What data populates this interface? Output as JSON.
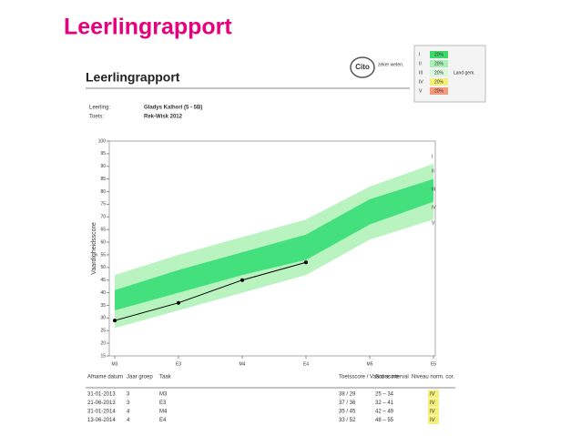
{
  "slide_title": "Leerlingrapport",
  "report": {
    "title": "Leerlingrapport",
    "logo": "Cito",
    "tagline": "zeker weten.",
    "fields": [
      {
        "label": "Leerling:",
        "value": "Gladys Kalhori (5 - 5B)"
      },
      {
        "label": "Toets:",
        "value": "Rek-Wisk 2012"
      }
    ],
    "level_legend": {
      "rows": [
        {
          "level": "I",
          "pct": "20%",
          "color": "#3fd96a"
        },
        {
          "level": "II",
          "pct": "20%",
          "color": "#a9f0b4"
        },
        {
          "level": "III",
          "pct": "20%",
          "color": "#d8f7dc"
        },
        {
          "level": "IV",
          "pct": "20%",
          "color": "#f4f07a"
        },
        {
          "level": "V",
          "pct": "20%",
          "color": "#f59a7a"
        }
      ],
      "note": "Land gem."
    }
  },
  "chart_data": {
    "type": "line",
    "y_label": "Vaardigheidsscore",
    "categories": [
      "M3",
      "E3",
      "M4",
      "E4",
      "M5",
      "E5"
    ],
    "series": [
      {
        "color": "#000000",
        "values": [
          29,
          36,
          45,
          52,
          null,
          null
        ]
      }
    ],
    "bands": [
      {
        "color": "#b8f3c0",
        "upper": [
          47,
          55,
          62,
          69,
          82,
          91
        ],
        "lower": [
          26,
          33,
          40,
          47,
          61,
          69
        ]
      },
      {
        "color": "#45e07e",
        "upper": [
          41,
          49,
          56,
          63,
          77,
          85
        ],
        "lower": [
          33,
          40,
          47,
          53,
          67,
          76
        ]
      }
    ],
    "level_labels": [
      "I",
      "II",
      "III",
      "IV",
      "V"
    ],
    "ylim": [
      15,
      100
    ],
    "yticks": [
      15,
      20,
      25,
      30,
      35,
      40,
      45,
      50,
      55,
      60,
      65,
      70,
      75,
      80,
      85,
      90,
      95,
      100
    ],
    "grid": false
  },
  "table": {
    "header": [
      "Afname datum",
      "Jaar groep",
      "Taak",
      "Toetsscore / Vaard score",
      "Score interval",
      "Niveau norm. cor."
    ],
    "rows": [
      [
        "31-01-2013",
        "3",
        "M3",
        "38 / 29",
        "25 – 34",
        "IV"
      ],
      [
        "21-06-2013",
        "3",
        "E3",
        "37 / 36",
        "32 – 41",
        "IV"
      ],
      [
        "31-01-2014",
        "4",
        "M4",
        "35 / 45",
        "42 – 49",
        "IV"
      ],
      [
        "13-06-2014",
        "4",
        "E4",
        "33 / 52",
        "48 – 55",
        "IV"
      ]
    ]
  }
}
